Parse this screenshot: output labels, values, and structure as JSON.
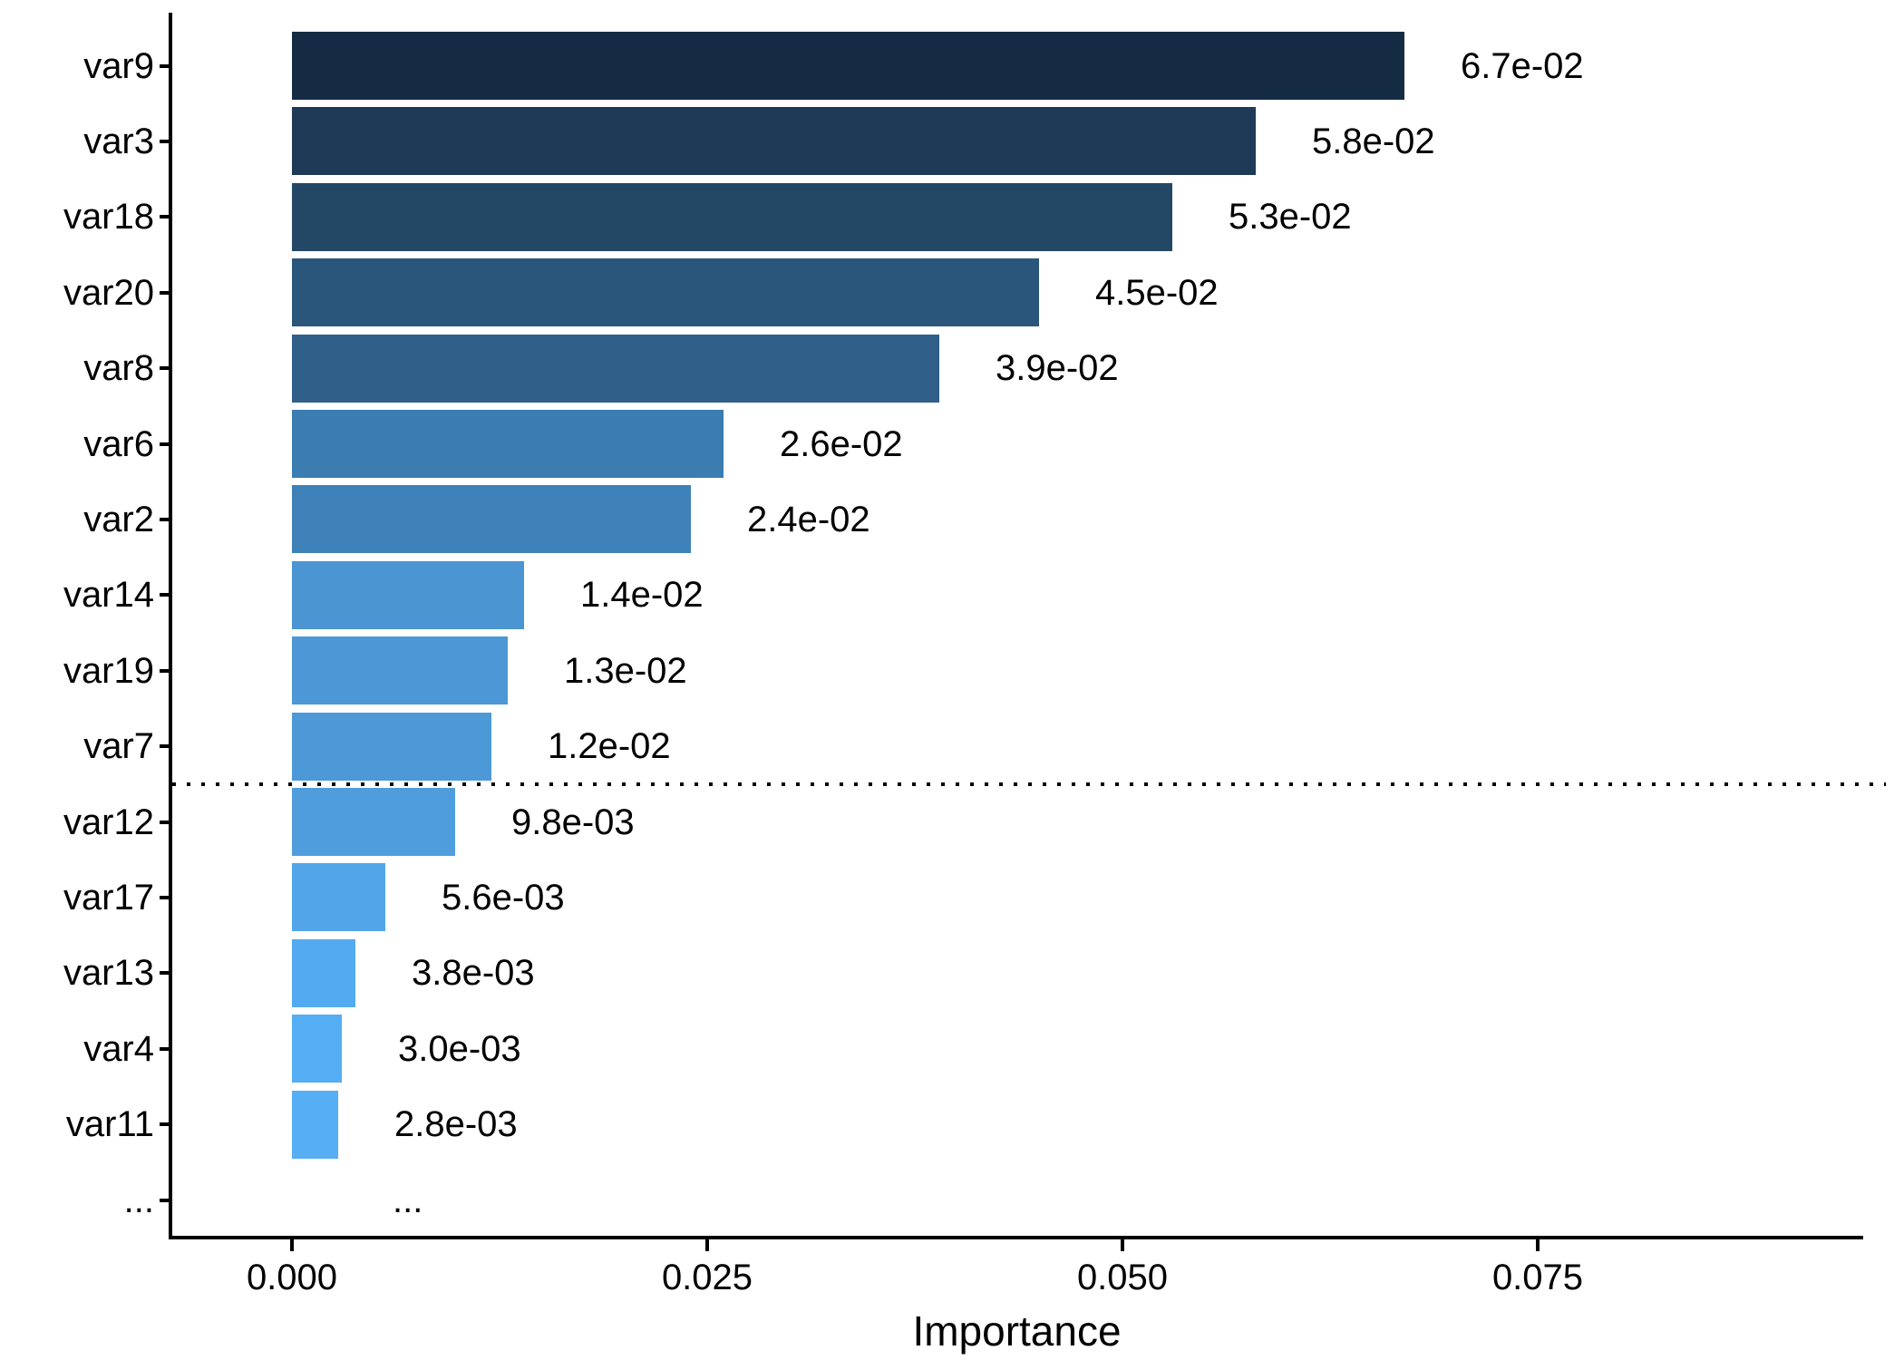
{
  "chart_data": {
    "type": "bar",
    "orientation": "horizontal",
    "title": "",
    "xlabel": "Importance",
    "ylabel": "",
    "categories": [
      "var9",
      "var3",
      "var18",
      "var20",
      "var8",
      "var6",
      "var2",
      "var14",
      "var19",
      "var7",
      "var12",
      "var17",
      "var13",
      "var4",
      "var11",
      "..."
    ],
    "values": [
      0.067,
      0.058,
      0.053,
      0.045,
      0.039,
      0.026,
      0.024,
      0.014,
      0.013,
      0.012,
      0.0098,
      0.0056,
      0.0038,
      0.003,
      0.0028,
      null
    ],
    "value_labels": [
      "6.7e-02",
      "5.8e-02",
      "5.3e-02",
      "4.5e-02",
      "3.9e-02",
      "2.6e-02",
      "2.4e-02",
      "1.4e-02",
      "1.3e-02",
      "1.2e-02",
      "9.8e-03",
      "5.6e-03",
      "3.8e-03",
      "3.0e-03",
      "2.8e-03",
      "..."
    ],
    "bar_colors": [
      "#152B44",
      "#1E3A56",
      "#234866",
      "#2A567C",
      "#306089",
      "#3B7CB1",
      "#3E81B8",
      "#4B95D3",
      "#4C97D5",
      "#4D99D8",
      "#4F9DDC",
      "#52A5E9",
      "#54AAF0",
      "#55ADF3",
      "#56AEF5"
    ],
    "x_axis": {
      "tick_labels": [
        "0.000",
        "0.025",
        "0.050",
        "0.075"
      ],
      "tick_values": [
        0,
        0.025,
        0.05,
        0.075
      ]
    },
    "xlim": [
      -0.0073,
      0.0947
    ],
    "grid": "off",
    "legend": "none",
    "annotations": {
      "threshold_line": {
        "between": [
          "var7",
          "var12"
        ],
        "style": "dotted",
        "color": "#000000"
      }
    },
    "colors": {
      "axis": "#000000",
      "text": "#000000",
      "background": "#FFFFFF"
    }
  }
}
